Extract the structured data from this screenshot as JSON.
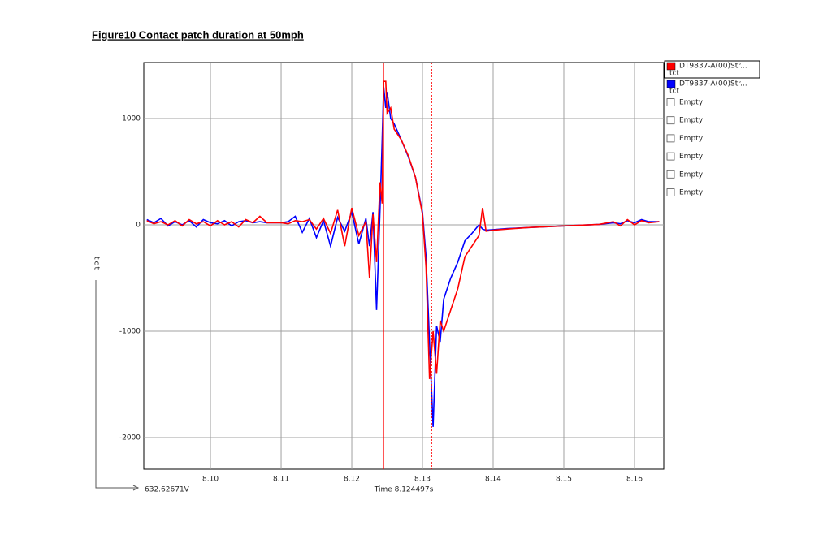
{
  "chart_data": {
    "type": "line",
    "title": "Figure10 Contact patch duration at 50mph",
    "y_label": "tct",
    "origin_label": "632.62671V",
    "cursor_label": "Time 8.124497s",
    "x": [
      8.091,
      8.092,
      8.093,
      8.094,
      8.095,
      8.096,
      8.097,
      8.098,
      8.099,
      8.1,
      8.101,
      8.102,
      8.103,
      8.104,
      8.105,
      8.106,
      8.107,
      8.108,
      8.109,
      8.11,
      8.111,
      8.112,
      8.113,
      8.114,
      8.115,
      8.116,
      8.117,
      8.118,
      8.119,
      8.12,
      8.121,
      8.122,
      8.1225,
      8.123,
      8.1235,
      8.124,
      8.1243,
      8.1245,
      8.1248,
      8.125,
      8.1255,
      8.126,
      8.127,
      8.128,
      8.129,
      8.13,
      8.1305,
      8.131,
      8.1315,
      8.132,
      8.1325,
      8.133,
      8.134,
      8.135,
      8.136,
      8.137,
      8.138,
      8.1385,
      8.139,
      8.14,
      8.142,
      8.145,
      8.15,
      8.155,
      8.157,
      8.158,
      8.159,
      8.16,
      8.161,
      8.162,
      8.1635
    ],
    "series": [
      {
        "name": "DT9837-A(00)Str...",
        "unit": "tct",
        "color": "#ff0000",
        "values": [
          40,
          10,
          30,
          0,
          40,
          -10,
          50,
          10,
          30,
          -10,
          40,
          0,
          30,
          -20,
          50,
          20,
          80,
          20,
          20,
          20,
          10,
          40,
          30,
          50,
          -40,
          60,
          -80,
          140,
          -200,
          160,
          -100,
          30,
          -500,
          100,
          -350,
          400,
          200,
          1350,
          1350,
          1050,
          1100,
          900,
          800,
          650,
          450,
          100,
          -400,
          -1450,
          -1000,
          -1400,
          -900,
          -1000,
          -800,
          -600,
          -300,
          -200,
          -100,
          160,
          -60,
          -50,
          -40,
          -25,
          -10,
          5,
          30,
          -10,
          50,
          0,
          40,
          20,
          30
        ]
      },
      {
        "name": "DT9837-A(00)Str...",
        "unit": "tct",
        "color": "#0000ff",
        "values": [
          50,
          20,
          60,
          -10,
          30,
          0,
          40,
          -20,
          50,
          20,
          10,
          40,
          -10,
          30,
          40,
          20,
          30,
          20,
          20,
          20,
          30,
          80,
          -70,
          60,
          -120,
          40,
          -200,
          70,
          -60,
          120,
          -180,
          60,
          -200,
          120,
          -800,
          150,
          800,
          1300,
          1100,
          1250,
          1000,
          950,
          800,
          640,
          450,
          120,
          -300,
          -1100,
          -1900,
          -950,
          -1100,
          -700,
          -500,
          -350,
          -150,
          -80,
          0,
          -40,
          -50,
          -45,
          -35,
          -25,
          -10,
          5,
          20,
          10,
          40,
          20,
          50,
          30,
          30
        ]
      }
    ],
    "empty_slots": [
      "Empty",
      "Empty",
      "Empty",
      "Empty",
      "Empty",
      "Empty"
    ],
    "cursors": [
      {
        "x": 8.1245,
        "color": "#ff0000",
        "style": "solid"
      },
      {
        "x": 8.1313,
        "color": "#ff0000",
        "style": "dotted"
      }
    ],
    "xlim": [
      8.09057,
      8.16414
    ],
    "xticks": [
      {
        "value": 8.1,
        "label": "8.10"
      },
      8.11,
      8.12,
      8.13,
      8.14,
      8.15,
      8.16
    ],
    "ylim": [
      -2298,
      1527
    ],
    "yticks": [
      1000,
      0,
      -1000,
      -2000
    ],
    "grid": true
  }
}
